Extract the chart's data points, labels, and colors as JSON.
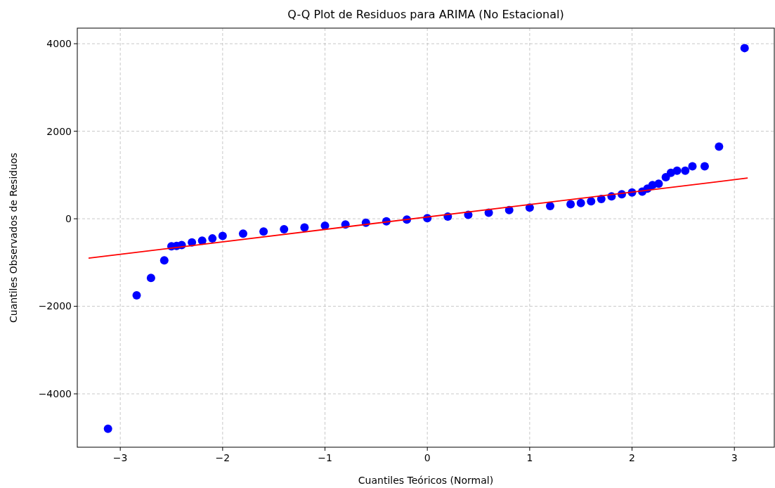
{
  "chart_data": {
    "type": "scatter",
    "title": "Q-Q Plot de Residuos para ARIMA (No Estacional)",
    "xlabel": "Cuantiles Teóricos (Normal)",
    "ylabel": "Cuantiles Observados de Residuos",
    "xlim": [
      -3.42,
      3.39
    ],
    "ylim": [
      -5220,
      4356
    ],
    "xticks": [
      {
        "value": -3,
        "label": "−3"
      },
      {
        "value": -2,
        "label": "−2"
      },
      {
        "value": -1,
        "label": "−1"
      },
      0,
      1,
      2,
      3
    ],
    "yticks": [
      {
        "value": -4000,
        "label": "−4000"
      },
      {
        "value": -2000,
        "label": "−2000"
      },
      0,
      2000,
      4000
    ],
    "grid": true,
    "series": [
      {
        "marker": "circle",
        "color": "#0000ff",
        "x": [
          -3.12,
          -2.84,
          -2.7,
          -2.57,
          -2.5,
          -2.45,
          -2.4,
          -2.3,
          -2.2,
          -2.1,
          -2.0,
          -1.8,
          -1.6,
          -1.4,
          -1.2,
          -1.0,
          -0.8,
          -0.6,
          -0.4,
          -0.2,
          0,
          0.2,
          0.4,
          0.6,
          0.8,
          1.0,
          1.2,
          1.4,
          1.5,
          1.6,
          1.7,
          1.8,
          1.9,
          2.0,
          2.1,
          2.15,
          2.2,
          2.26,
          2.33,
          2.38,
          2.44,
          2.52,
          2.59,
          2.71,
          2.85,
          3.1
        ],
        "values": [
          -4800,
          -1750,
          -1350,
          -950,
          -630,
          -620,
          -600,
          -540,
          -500,
          -450,
          -390,
          -340,
          -290,
          -240,
          -200,
          -160,
          -130,
          -90,
          -60,
          -20,
          15,
          50,
          90,
          140,
          200,
          255,
          290,
          330,
          360,
          400,
          450,
          510,
          560,
          600,
          620,
          690,
          770,
          800,
          950,
          1050,
          1100,
          1100,
          1200,
          1200,
          1650,
          3900
        ]
      },
      {
        "type": "line",
        "color": "#ff0000",
        "x": [
          -3.31,
          3.13
        ],
        "values": [
          -900,
          930
        ]
      }
    ]
  }
}
